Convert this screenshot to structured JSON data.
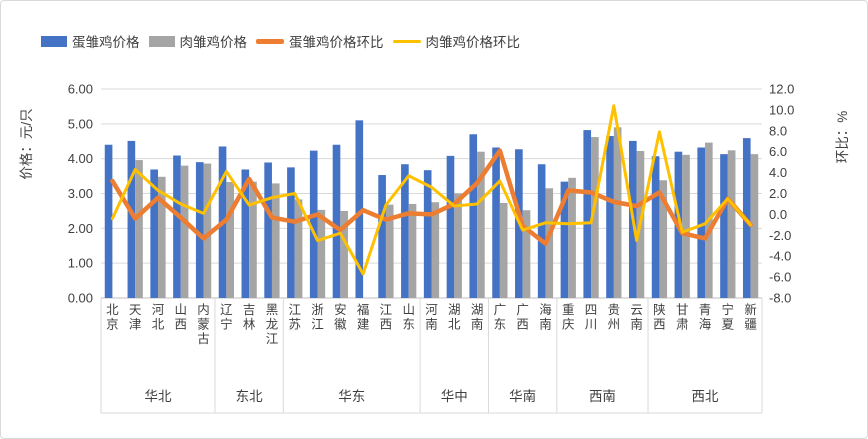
{
  "chart_data": {
    "type": "combo-bar-line",
    "title": "",
    "legend_position": "top",
    "grid": true,
    "grid_color": "#d9d9d9",
    "axis_line_color": "#bfbfbf",
    "text_color": "#404040",
    "left_axis": {
      "title": "价格：元/只",
      "min": 0,
      "max": 6,
      "step": 1,
      "decimals": 2
    },
    "right_axis": {
      "title": "环比：%",
      "min": -8,
      "max": 12,
      "step": 2,
      "decimals": 1,
      "negative_color": "#ff0000"
    },
    "regions": [
      {
        "name": "华北",
        "provinces": [
          "北京",
          "天津",
          "河北",
          "山西",
          "内蒙古"
        ]
      },
      {
        "name": "东北",
        "provinces": [
          "辽宁",
          "吉林",
          "黑龙江"
        ]
      },
      {
        "name": "华东",
        "provinces": [
          "江苏",
          "浙江",
          "安徽",
          "福建",
          "江西",
          "山东"
        ]
      },
      {
        "name": "华中",
        "provinces": [
          "河南",
          "湖北",
          "湖南"
        ]
      },
      {
        "name": "华南",
        "provinces": [
          "广东",
          "广西",
          "海南"
        ]
      },
      {
        "name": "西南",
        "provinces": [
          "重庆",
          "四川",
          "贵州",
          "云南"
        ]
      },
      {
        "name": "西北",
        "provinces": [
          "陕西",
          "甘肃",
          "青海",
          "宁夏",
          "新疆"
        ]
      }
    ],
    "series": [
      {
        "name": "蛋雏鸡价格",
        "type": "bar",
        "axis": "left",
        "color": "#4472c4",
        "values": [
          4.4,
          4.51,
          3.69,
          4.09,
          3.9,
          4.35,
          3.69,
          3.89,
          3.75,
          4.23,
          4.4,
          5.1,
          3.53,
          3.84,
          3.67,
          4.08,
          4.7,
          4.32,
          4.27,
          3.84,
          3.34,
          4.82,
          4.65,
          4.51,
          4.07,
          4.2,
          4.32,
          4.13,
          4.59
        ]
      },
      {
        "name": "肉雏鸡价格",
        "type": "bar",
        "axis": "left",
        "color": "#a5a5a5",
        "values": [
          null,
          3.96,
          3.48,
          3.8,
          3.86,
          3.33,
          3.34,
          3.29,
          2.83,
          2.53,
          2.5,
          null,
          2.68,
          2.7,
          2.75,
          3.0,
          4.2,
          2.73,
          2.52,
          3.15,
          3.45,
          4.62,
          4.9,
          4.22,
          3.38,
          4.11,
          4.46,
          4.24,
          4.13
        ]
      },
      {
        "name": "蛋雏鸡价格环比",
        "type": "line",
        "axis": "right",
        "color": "#ed7d31",
        "values": [
          3.2,
          -0.4,
          1.6,
          -0.3,
          -2.3,
          -0.5,
          3.4,
          -0.3,
          -0.7,
          0.0,
          -1.5,
          0.4,
          -0.5,
          0.1,
          0.0,
          1.0,
          3.0,
          6.1,
          -1.1,
          -2.8,
          2.3,
          2.1,
          1.2,
          0.8,
          2.1,
          -1.8,
          -2.3,
          1.5,
          -1.0
        ]
      },
      {
        "name": "肉雏鸡价格环比",
        "type": "line",
        "axis": "right",
        "color": "#ffc000",
        "values": [
          -0.4,
          4.3,
          2.3,
          1.0,
          0.1,
          4.1,
          0.9,
          1.6,
          2.0,
          -2.5,
          -1.8,
          -5.7,
          0.9,
          3.7,
          2.6,
          0.8,
          1.0,
          3.2,
          -1.5,
          -0.8,
          -0.9,
          -0.8,
          10.4,
          -2.5,
          7.9,
          -1.7,
          -0.9,
          1.5,
          -1.0
        ]
      }
    ]
  }
}
